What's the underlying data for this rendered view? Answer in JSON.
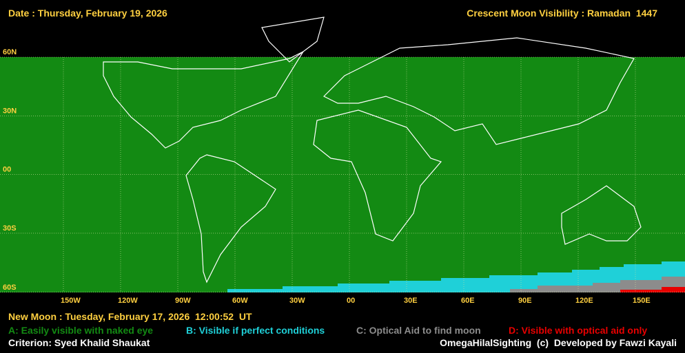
{
  "header": {
    "date": "Date : Thursday, February 19, 2026",
    "title": "Crescent Moon Visibility : Ramadan  1447"
  },
  "map": {
    "lat_labels": [
      "60N",
      "30N",
      "00",
      "30S",
      "60S"
    ],
    "lon_labels": [
      "150W",
      "120W",
      "90W",
      "60W",
      "30W",
      "00",
      "30E",
      "60E",
      "90E",
      "120E",
      "150E"
    ]
  },
  "footer": {
    "new_moon": "New Moon : Tuesday, February 17, 2026  12:00:52  UT",
    "legend": [
      {
        "label": "A: Easily visible with naked eye",
        "color": "#138a13"
      },
      {
        "label": "B: Visible if perfect conditions",
        "color": "#1fd0d8"
      },
      {
        "label": "C: Optical Aid to find moon",
        "color": "#8c8c8c"
      },
      {
        "label": "D: Visible with optical aid only",
        "color": "#e80000"
      }
    ],
    "criterion": "Criterion: Syed Khalid Shaukat",
    "credit": "OmegaHilalSighting  (c)  Developed by Fawzi Kayali"
  }
}
